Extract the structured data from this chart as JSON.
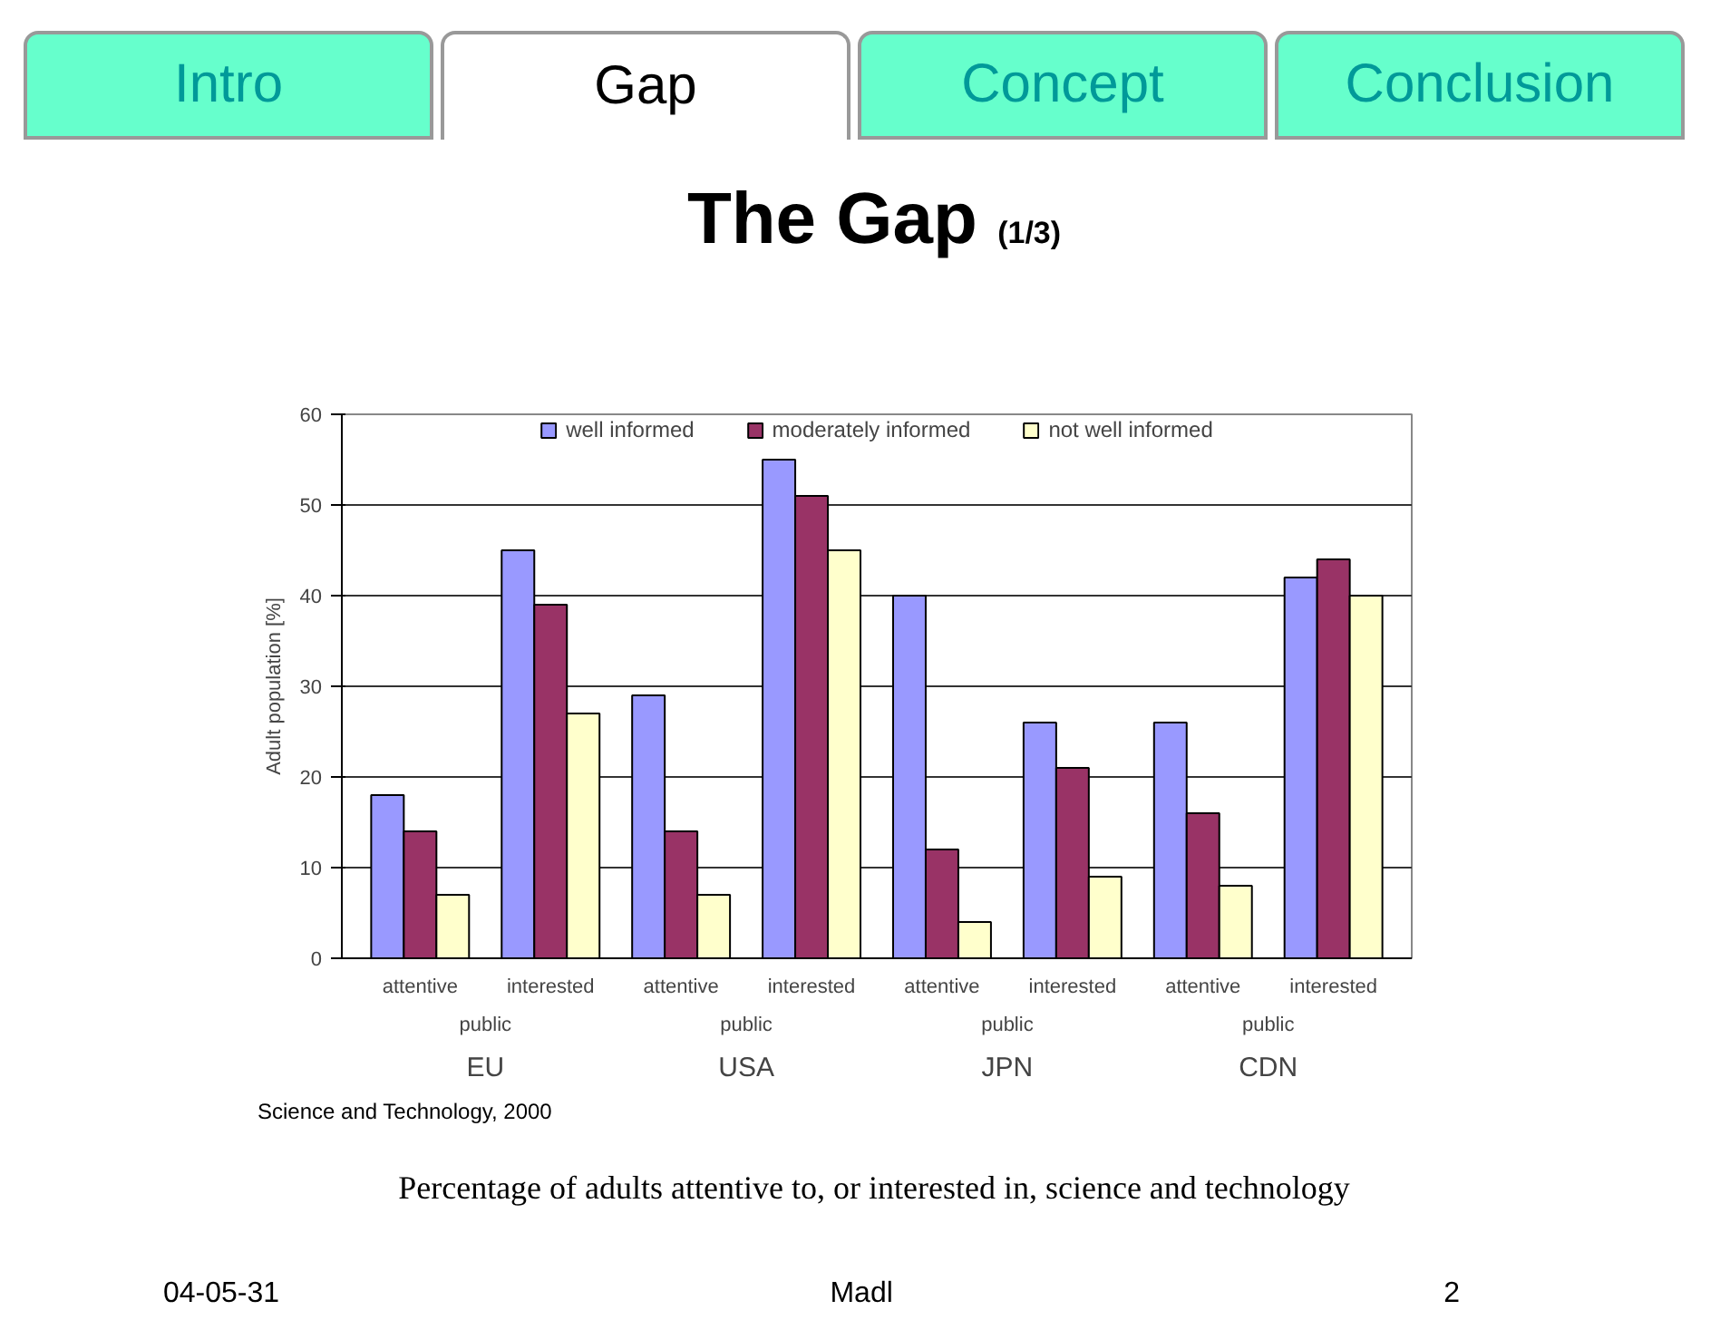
{
  "chart_data": {
    "type": "bar",
    "title": "The Gap",
    "subtitle": "(1/3)",
    "ylabel": "Adult population [%]",
    "categories": [
      "attentive",
      "interested",
      "attentive",
      "interested",
      "attentive",
      "interested",
      "attentive",
      "interested"
    ],
    "series": [
      {
        "name": "well informed",
        "color": "#9999ff",
        "values": [
          18,
          45,
          29,
          55,
          40,
          26,
          26,
          42
        ]
      },
      {
        "name": "moderately informed",
        "color": "#993366",
        "values": [
          14,
          39,
          14,
          51,
          12,
          21,
          16,
          44
        ]
      },
      {
        "name": "not well informed",
        "color": "#ffffcc",
        "values": [
          7,
          27,
          7,
          45,
          4,
          9,
          8,
          40
        ]
      }
    ],
    "ylim": [
      0,
      60
    ],
    "yticks": [
      0,
      10,
      20,
      30,
      40,
      50,
      60
    ],
    "grid": "y",
    "legend": "top",
    "annotations": [
      "public",
      "EU",
      "public",
      "USA",
      "public",
      "JPN",
      "public",
      "CDN",
      "Science and Technology, 2000",
      "Percentage of adults attentive to, or interested in, science and technology",
      "Intro",
      "Gap",
      "Concept",
      "Conclusion",
      "04-05-31",
      "Madl",
      "2"
    ]
  }
}
